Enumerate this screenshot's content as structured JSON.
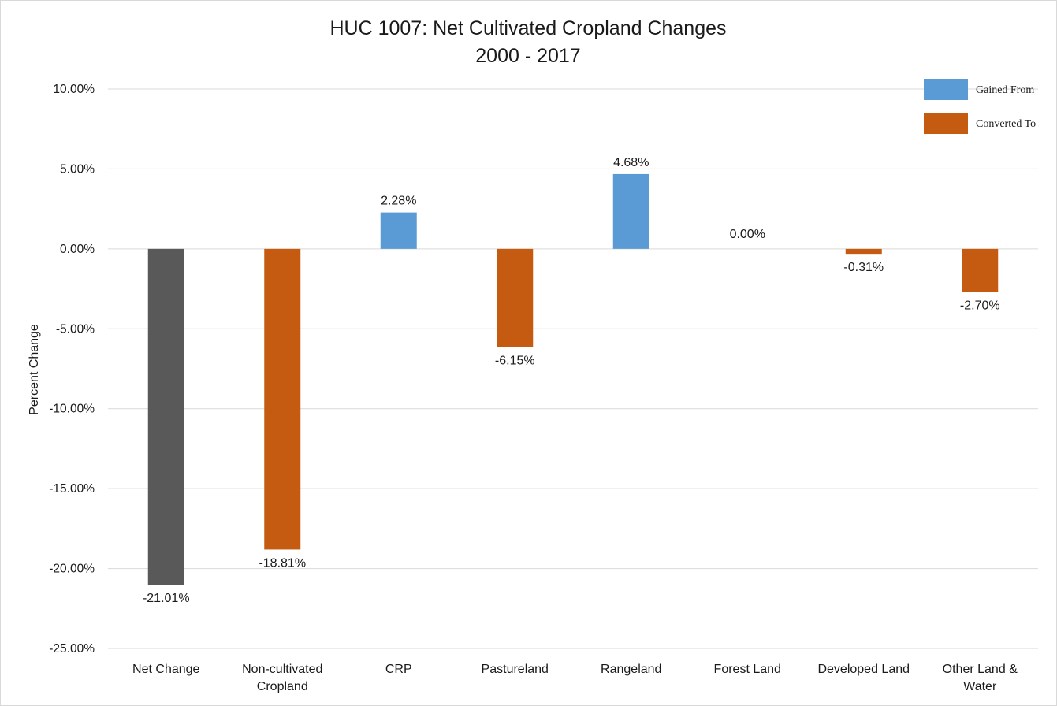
{
  "chart_data": {
    "type": "bar",
    "title": "HUC 1007: Net Cultivated Cropland Changes",
    "subtitle": "2000 - 2017",
    "xlabel": "",
    "ylabel": "Percent Change",
    "ylim": [
      -25,
      10
    ],
    "yticks": [
      10,
      5,
      0,
      -5,
      -10,
      -15,
      -20,
      -25
    ],
    "ytick_labels": [
      "10.00%",
      "5.00%",
      "0.00%",
      "-5.00%",
      "-10.00%",
      "-15.00%",
      "-20.00%",
      "-25.00%"
    ],
    "grid": true,
    "legend_position": "top-right",
    "categories": [
      [
        "Net Change"
      ],
      [
        "Non-cultivated",
        "Cropland"
      ],
      [
        "CRP"
      ],
      [
        "Pastureland"
      ],
      [
        "Rangeland"
      ],
      [
        "Forest Land"
      ],
      [
        "Developed Land"
      ],
      [
        "Other Land &",
        "Water"
      ]
    ],
    "values": [
      -21.01,
      -18.81,
      2.28,
      -6.15,
      4.68,
      0.0,
      -0.31,
      -2.7
    ],
    "data_labels": [
      "-21.01%",
      "-18.81%",
      "2.28%",
      "-6.15%",
      "4.68%",
      "0.00%",
      "-0.31%",
      "-2.70%"
    ],
    "bar_kinds": [
      "net",
      "converted",
      "gained",
      "converted",
      "gained",
      "gained",
      "converted",
      "converted"
    ],
    "legend": [
      {
        "kind": "gained",
        "label": "Gained From"
      },
      {
        "kind": "converted",
        "label": "Converted To"
      }
    ],
    "colors": {
      "net": "#595959",
      "gained": "#5b9bd5",
      "converted": "#c55a11"
    }
  }
}
